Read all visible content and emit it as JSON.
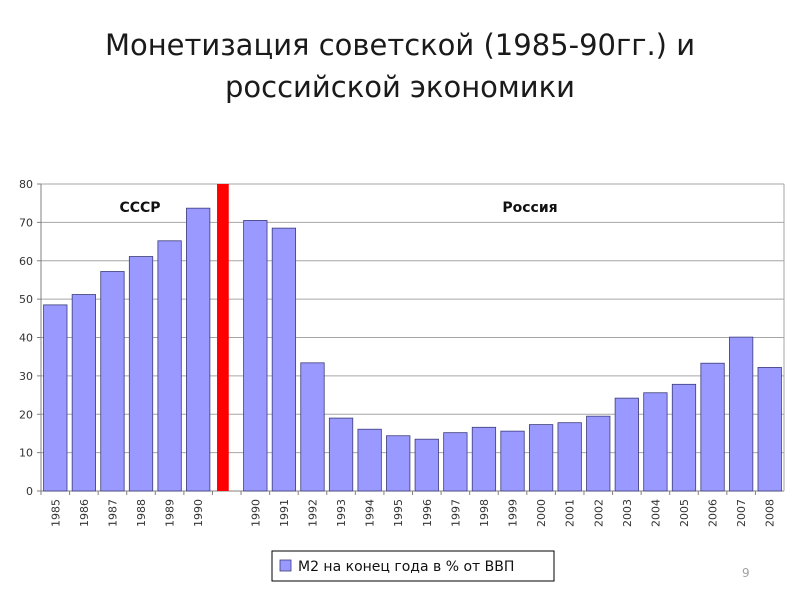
{
  "slide": {
    "title_line1": "Монетизация советской (1985-90гг.) и",
    "title_line2": "российской экономики",
    "page_number": "9"
  },
  "chart_data": {
    "type": "bar",
    "ylim": [
      0,
      80
    ],
    "yticks": [
      0,
      10,
      20,
      30,
      40,
      50,
      60,
      70,
      80
    ],
    "grid": true,
    "legend_position": "bottom-center",
    "divider_color": "#ff0000",
    "bar_color": "#9999ff",
    "regions": [
      "СССР",
      "Россия"
    ],
    "categories": [
      "1985",
      "1986",
      "1987",
      "1988",
      "1989",
      "1990",
      "",
      "1990",
      "1991",
      "1992",
      "1993",
      "1994",
      "1995",
      "1996",
      "1997",
      "1998",
      "1999",
      "2000",
      "2001",
      "2002",
      "2003",
      "2004",
      "2005",
      "2006",
      "2007",
      "2008"
    ],
    "series": [
      {
        "name": "М2 на конец года в % от ВВП",
        "values": [
          48.5,
          51.2,
          57.2,
          61.1,
          65.2,
          73.7,
          80,
          70.5,
          68.5,
          33.4,
          19.0,
          16.1,
          14.4,
          13.5,
          15.2,
          16.6,
          15.6,
          17.3,
          17.8,
          19.5,
          24.2,
          25.6,
          27.8,
          33.3,
          40.1,
          32.2
        ]
      }
    ]
  }
}
